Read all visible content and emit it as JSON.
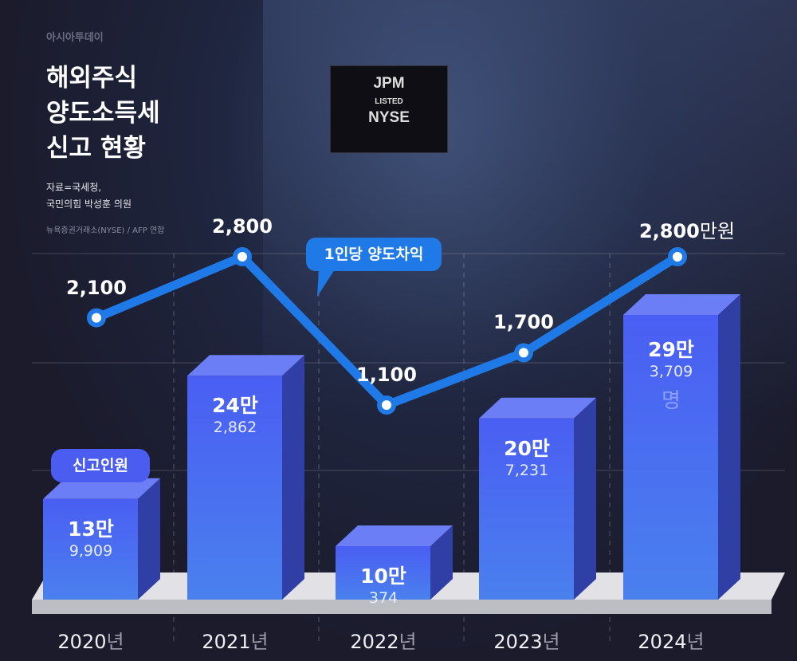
{
  "logo": "아시아투데이",
  "title": "해외주식\n양도소득세\n신고 현황",
  "source": "자료=국세청,\n국민의힘 박성훈 의원",
  "photo_credit": "뉴욕증권거래소(NYSE) / AFP 연합",
  "photo_sign": "JPM LISTED NYSE",
  "chart_data": {
    "type": "bar+line",
    "categories": [
      "2020",
      "2021",
      "2022",
      "2023",
      "2024"
    ],
    "category_unit": "년",
    "bar_series": {
      "name": "신고인원",
      "values": [
        139909,
        242862,
        100374,
        207231,
        293709
      ],
      "labels_big": [
        "13만",
        "24만",
        "10만",
        "20만",
        "29만"
      ],
      "labels_small": [
        "9,909",
        "2,862",
        "374",
        "7,231",
        "3,709"
      ],
      "unit": "명",
      "color": "#4a66f5"
    },
    "line_series": {
      "name": "1인당 양도차익",
      "values": [
        2100,
        2800,
        1100,
        1700,
        2800
      ],
      "labels": [
        "2,100",
        "2,800",
        "1,100",
        "1,700",
        "2,800"
      ],
      "unit": "만원",
      "color": "#1f7ae8"
    },
    "grid": true
  }
}
